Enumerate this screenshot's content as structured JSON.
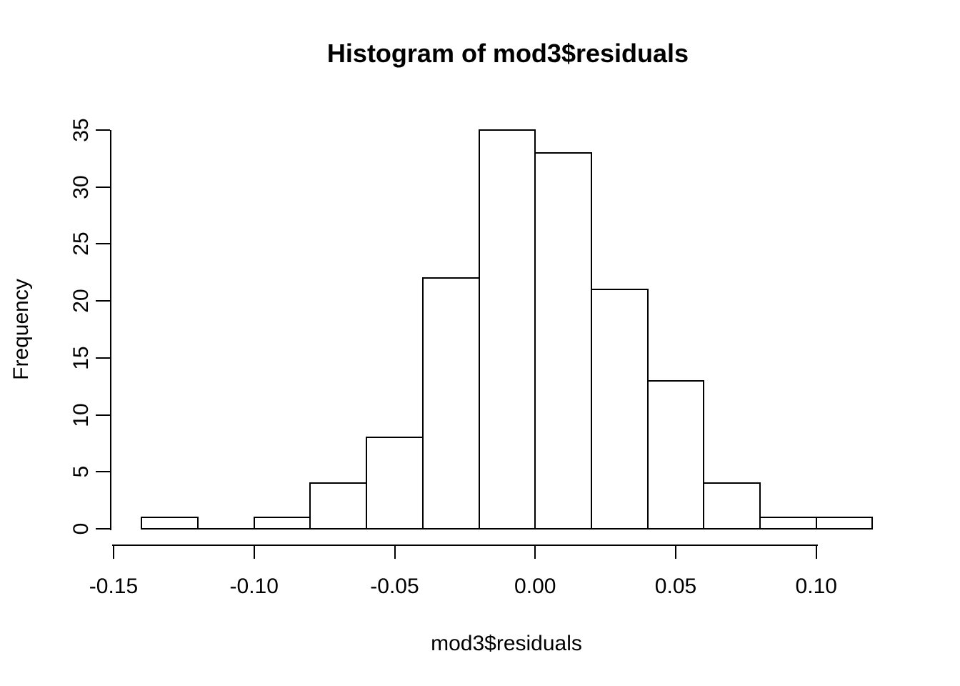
{
  "chart_data": {
    "type": "bar",
    "subtype": "histogram",
    "title": "Histogram of mod3$residuals",
    "xlabel": "mod3$residuals",
    "ylabel": "Frequency",
    "bin_width": 0.02,
    "bin_edges": [
      -0.14,
      -0.12,
      -0.1,
      -0.08,
      -0.06,
      -0.04,
      -0.02,
      0.0,
      0.02,
      0.04,
      0.06,
      0.08,
      0.1,
      0.12
    ],
    "counts": [
      1,
      0,
      1,
      4,
      8,
      22,
      35,
      33,
      21,
      13,
      4,
      1,
      1
    ],
    "x_ticks": [
      {
        "value": -0.15,
        "label": "-0.15"
      },
      {
        "value": -0.1,
        "label": "-0.10"
      },
      {
        "value": -0.05,
        "label": "-0.05"
      },
      {
        "value": 0.0,
        "label": "0.00"
      },
      {
        "value": 0.05,
        "label": "0.05"
      },
      {
        "value": 0.1,
        "label": "0.10"
      }
    ],
    "y_ticks": [
      {
        "value": 0,
        "label": "0"
      },
      {
        "value": 5,
        "label": "5"
      },
      {
        "value": 10,
        "label": "10"
      },
      {
        "value": 15,
        "label": "15"
      },
      {
        "value": 20,
        "label": "20"
      },
      {
        "value": 25,
        "label": "25"
      },
      {
        "value": 30,
        "label": "30"
      },
      {
        "value": 35,
        "label": "35"
      }
    ],
    "xlim": [
      -0.15,
      0.12
    ],
    "ylim": [
      0,
      35
    ],
    "grid": false,
    "legend": null,
    "colors": {
      "background": "#ffffff",
      "bar_fill": "#ffffff",
      "bar_border": "#000000",
      "axis": "#000000",
      "text": "#000000"
    }
  }
}
